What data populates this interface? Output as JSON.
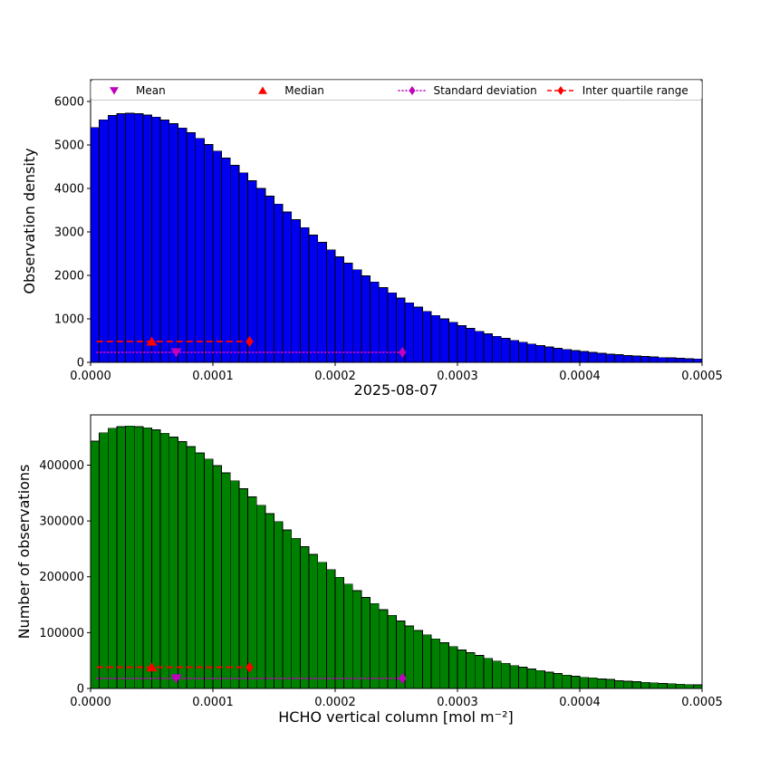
{
  "figure": {
    "background": "#ffffff"
  },
  "legend": {
    "items": [
      {
        "label": "Mean",
        "marker": "triangle-down",
        "color": "#bf00bf",
        "line": "none"
      },
      {
        "label": "Median",
        "marker": "triangle-up",
        "color": "#ff0000",
        "line": "none"
      },
      {
        "label": "Standard deviation",
        "marker": "diamond",
        "color": "#bf00bf",
        "line": "dotted"
      },
      {
        "label": "Inter quartile range",
        "marker": "diamond",
        "color": "#ff0000",
        "line": "dashed"
      }
    ]
  },
  "chart_data": [
    {
      "type": "bar",
      "name": "observation-density-histogram",
      "title": "",
      "xlabel": "2025-08-07",
      "ylabel": "Observation density",
      "bar_color": "#0000ee",
      "edge_color": "#000000",
      "grid": false,
      "legend_position": "top-expanded",
      "xlim": [
        0,
        0.0005
      ],
      "ylim": [
        0,
        6500
      ],
      "bin_start": 0,
      "bin_width": 7.142857e-06,
      "values": [
        5400,
        5580,
        5680,
        5720,
        5730,
        5720,
        5690,
        5640,
        5570,
        5490,
        5390,
        5280,
        5150,
        5010,
        4860,
        4700,
        4530,
        4360,
        4180,
        4000,
        3820,
        3640,
        3460,
        3280,
        3100,
        2930,
        2760,
        2590,
        2430,
        2280,
        2130,
        1990,
        1850,
        1720,
        1600,
        1480,
        1370,
        1270,
        1170,
        1080,
        1000,
        920,
        845,
        780,
        715,
        655,
        600,
        550,
        505,
        462,
        423,
        388,
        355,
        325,
        297,
        272,
        249,
        228,
        208,
        190,
        174,
        159,
        146,
        133,
        122,
        111,
        102,
        93,
        85,
        78
      ],
      "xticks": [
        {
          "value": 0,
          "label": "0.0000"
        },
        {
          "value": 0.0001,
          "label": "0.0001"
        },
        {
          "value": 0.0002,
          "label": "0.0002"
        },
        {
          "value": 0.0003,
          "label": "0.0003"
        },
        {
          "value": 0.0004,
          "label": "0.0004"
        },
        {
          "value": 0.0005,
          "label": "0.0005"
        }
      ],
      "yticks": [
        {
          "value": 0,
          "label": "0"
        },
        {
          "value": 1000,
          "label": "1000"
        },
        {
          "value": 2000,
          "label": "2000"
        },
        {
          "value": 3000,
          "label": "3000"
        },
        {
          "value": 4000,
          "label": "4000"
        },
        {
          "value": 5000,
          "label": "5000"
        },
        {
          "value": 6000,
          "label": "6000"
        }
      ],
      "markers": {
        "mean": {
          "x": 7e-05,
          "y": 230,
          "color": "#bf00bf",
          "marker": "triangle-down"
        },
        "median": {
          "x": 5e-05,
          "y": 480,
          "color": "#ff0000",
          "marker": "triangle-up"
        },
        "std": {
          "x0": 5e-06,
          "x1": 0.000255,
          "y": 230,
          "color": "#bf00bf",
          "style": "dotted",
          "marker": "diamond"
        },
        "iqr": {
          "x0": 5e-06,
          "x1": 0.00013,
          "y": 480,
          "color": "#ff0000",
          "style": "dashed",
          "marker": "diamond"
        }
      }
    },
    {
      "type": "bar",
      "name": "number-of-observations-histogram",
      "title": "",
      "xlabel": "HCHO vertical column [mol m⁻²]",
      "ylabel": "Number of observations",
      "bar_color": "#008000",
      "edge_color": "#000000",
      "grid": false,
      "xlim": [
        0,
        0.0005
      ],
      "ylim": [
        0,
        490000
      ],
      "bin_start": 0,
      "bin_width": 7.142857e-06,
      "values": [
        443000,
        458000,
        466000,
        469000,
        470000,
        469000,
        467000,
        463000,
        457000,
        450000,
        442000,
        433000,
        422000,
        411000,
        399000,
        386000,
        372000,
        358000,
        343000,
        328000,
        313000,
        299000,
        284000,
        269000,
        254000,
        240000,
        226000,
        213000,
        199000,
        187000,
        175000,
        163000,
        152000,
        141000,
        131000,
        121000,
        112000,
        104000,
        96000,
        89000,
        82000,
        75000,
        69000,
        64000,
        59000,
        54000,
        49000,
        45000,
        41000,
        38000,
        35000,
        32000,
        29000,
        27000,
        24000,
        22000,
        20000,
        19000,
        17000,
        16000,
        14000,
        13000,
        12000,
        11000,
        10000,
        9100,
        8400,
        7600,
        7000,
        6400
      ],
      "xticks": [
        {
          "value": 0,
          "label": "0.0000"
        },
        {
          "value": 0.0001,
          "label": "0.0001"
        },
        {
          "value": 0.0002,
          "label": "0.0002"
        },
        {
          "value": 0.0003,
          "label": "0.0003"
        },
        {
          "value": 0.0004,
          "label": "0.0004"
        },
        {
          "value": 0.0005,
          "label": "0.0005"
        }
      ],
      "yticks": [
        {
          "value": 0,
          "label": "0"
        },
        {
          "value": 100000,
          "label": "100000"
        },
        {
          "value": 200000,
          "label": "200000"
        },
        {
          "value": 300000,
          "label": "300000"
        },
        {
          "value": 400000,
          "label": "400000"
        }
      ],
      "markers": {
        "mean": {
          "x": 7e-05,
          "y": 18000,
          "color": "#bf00bf",
          "marker": "triangle-down"
        },
        "median": {
          "x": 5e-05,
          "y": 38000,
          "color": "#ff0000",
          "marker": "triangle-up"
        },
        "std": {
          "x0": 5e-06,
          "x1": 0.000255,
          "y": 18000,
          "color": "#bf00bf",
          "style": "dotted",
          "marker": "diamond"
        },
        "iqr": {
          "x0": 5e-06,
          "x1": 0.00013,
          "y": 38000,
          "color": "#ff0000",
          "style": "dashed",
          "marker": "diamond"
        }
      }
    }
  ]
}
